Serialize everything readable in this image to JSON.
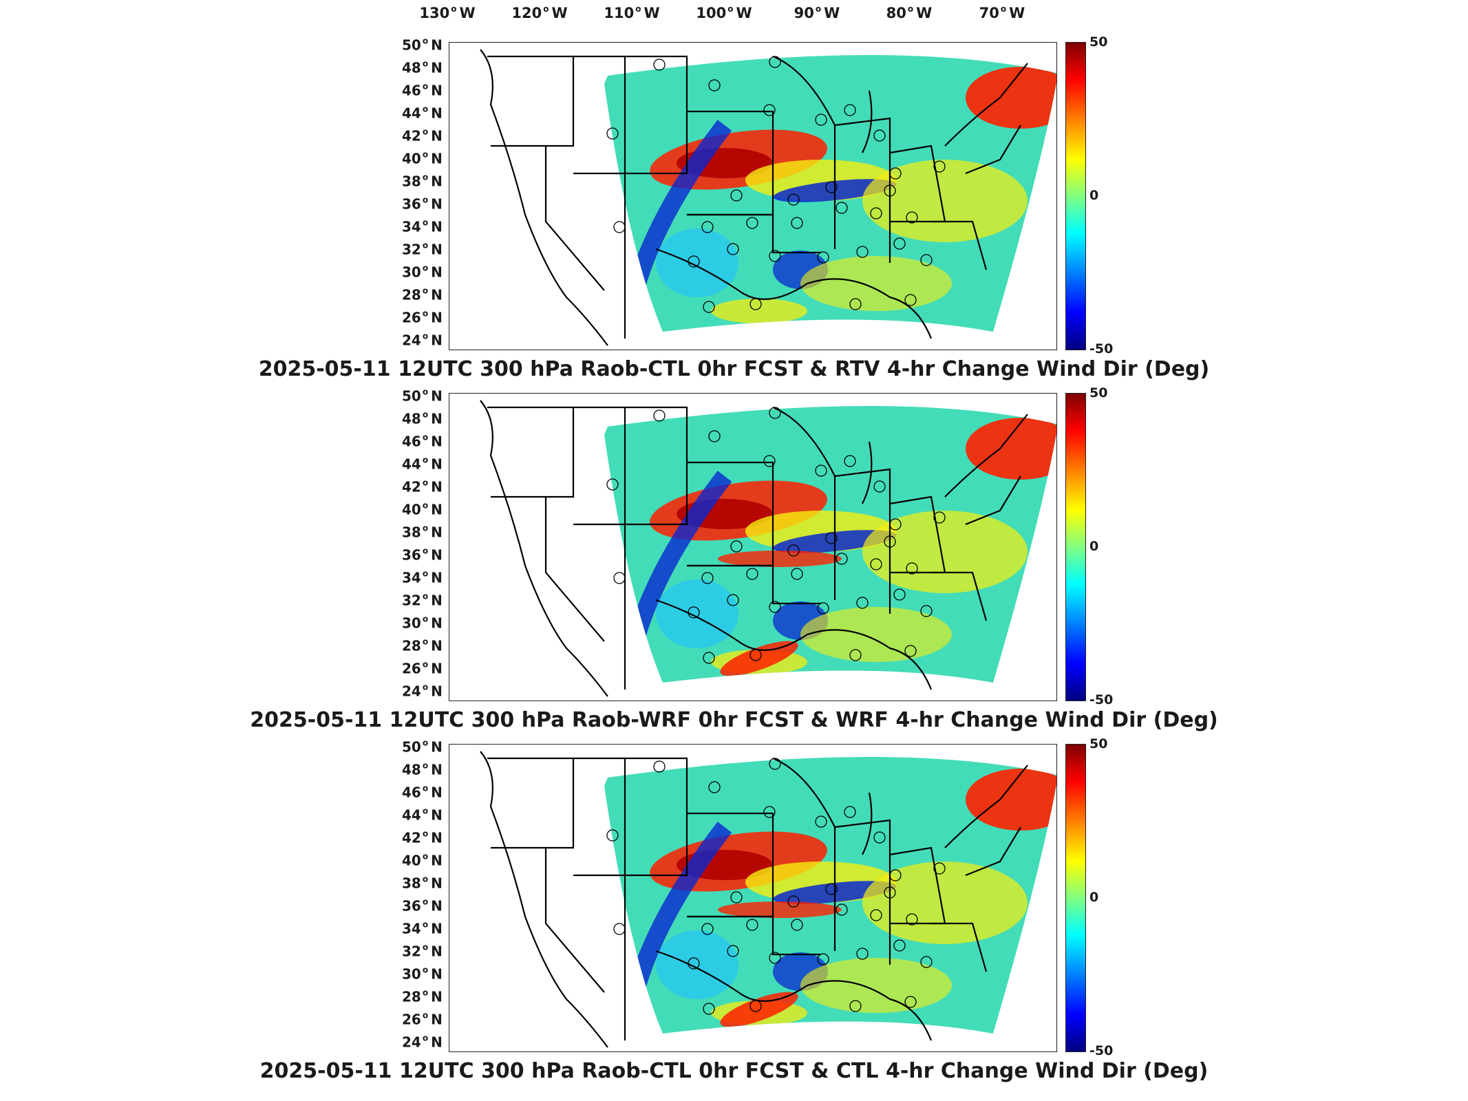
{
  "longitude_labels": [
    "130",
    "120",
    "110",
    "100",
    "90",
    "80",
    "70"
  ],
  "longitude_hemisphere": "W",
  "latitude_labels": [
    "50",
    "48",
    "46",
    "44",
    "42",
    "40",
    "38",
    "36",
    "34",
    "32",
    "30",
    "28",
    "26",
    "24"
  ],
  "latitude_hemisphere": "N",
  "colorbar": {
    "max_label": "50",
    "mid_label": "0",
    "min_label": "-50",
    "range": [
      -50,
      50
    ],
    "colormap": "jet"
  },
  "panels": [
    {
      "title": "2025-05-11 12UTC 300 hPa Raob-CTL 0hr FCST & RTV 4-hr Change Wind Dir (Deg)"
    },
    {
      "title": "2025-05-11 12UTC 300 hPa Raob-WRF 0hr FCST & WRF 4-hr Change Wind Dir (Deg)"
    },
    {
      "title": "2025-05-11 12UTC 300 hPa Raob-CTL 0hr FCST & CTL 4-hr Change Wind Dir (Deg)"
    }
  ],
  "map_colors": {
    "background_field": "#43dcb8",
    "warm": "#ff2000",
    "hot": "#b00000",
    "yellow": "#f5ee10",
    "cool": "#28c8f0",
    "cold": "#0a28d0"
  }
}
